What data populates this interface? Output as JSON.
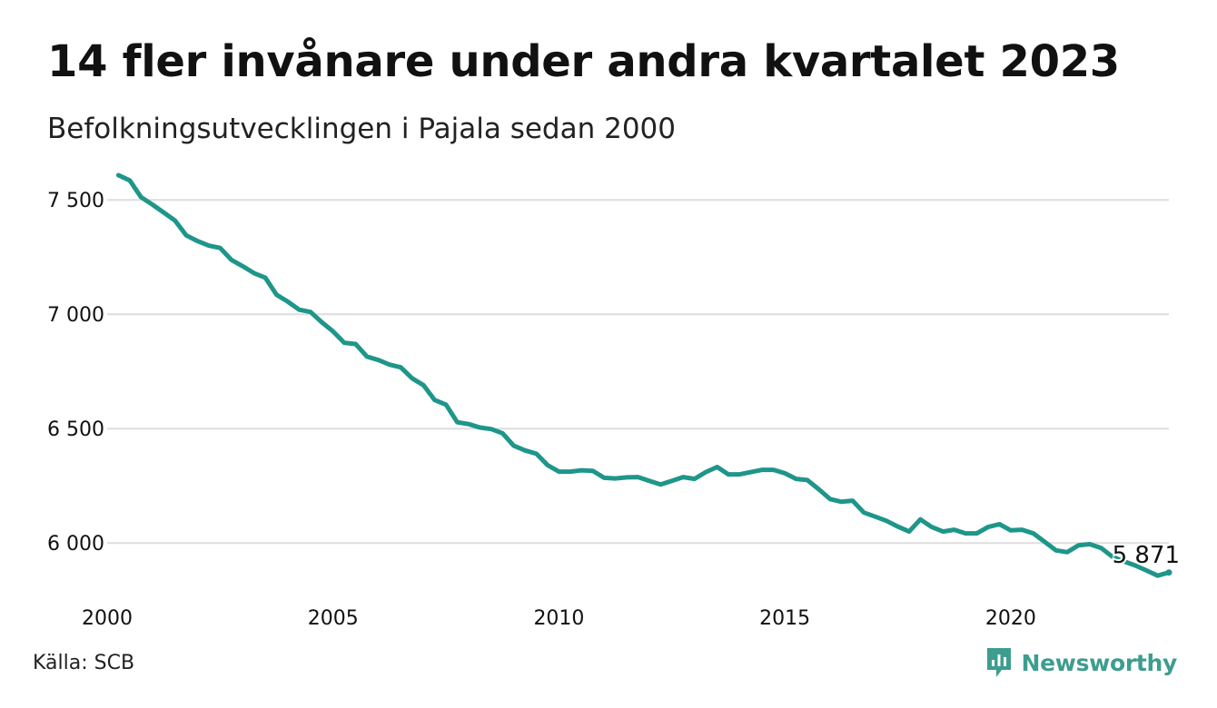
{
  "title": "14 fler invånare under andra kvartalet 2023",
  "subtitle": "Befolkningsutvecklingen i Pajala sedan 2000",
  "source": "Källa: SCB",
  "brand": {
    "name": "Newsworthy",
    "icon": "newsworthy-logo-icon"
  },
  "colors": {
    "line": "#1e968a",
    "grid": "#dddddd",
    "text": "#111111",
    "brand": "#3d9d8f"
  },
  "chart_data": {
    "type": "line",
    "title": "14 fler invånare under andra kvartalet 2023",
    "subtitle": "Befolkningsutvecklingen i Pajala sedan 2000",
    "xlabel": "",
    "ylabel": "",
    "xlim": [
      2000,
      2023.5
    ],
    "ylim": [
      5850,
      7620
    ],
    "x_ticks": [
      2000,
      2005,
      2010,
      2015,
      2020
    ],
    "x_tick_labels": [
      "2000",
      "2005",
      "2010",
      "2015",
      "2020"
    ],
    "y_ticks": [
      6000,
      6500,
      7000,
      7500
    ],
    "y_tick_labels": [
      "6 000",
      "6 500",
      "7 000",
      "7 500"
    ],
    "grid": "horizontal",
    "legend": "none",
    "end_label": "5 871",
    "x": [
      2000.25,
      2000.5,
      2000.75,
      2001.0,
      2001.25,
      2001.5,
      2001.75,
      2002.0,
      2002.25,
      2002.5,
      2002.75,
      2003.0,
      2003.25,
      2003.5,
      2003.75,
      2004.0,
      2004.25,
      2004.5,
      2004.75,
      2005.0,
      2005.25,
      2005.5,
      2005.75,
      2006.0,
      2006.25,
      2006.5,
      2006.75,
      2007.0,
      2007.25,
      2007.5,
      2007.75,
      2008.0,
      2008.25,
      2008.5,
      2008.75,
      2009.0,
      2009.25,
      2009.5,
      2009.75,
      2010.0,
      2010.25,
      2010.5,
      2010.75,
      2011.0,
      2011.25,
      2011.5,
      2011.75,
      2012.0,
      2012.25,
      2012.5,
      2012.75,
      2013.0,
      2013.25,
      2013.5,
      2013.75,
      2014.0,
      2014.25,
      2014.5,
      2014.75,
      2015.0,
      2015.25,
      2015.5,
      2015.75,
      2016.0,
      2016.25,
      2016.5,
      2016.75,
      2017.0,
      2017.25,
      2017.5,
      2017.75,
      2018.0,
      2018.25,
      2018.5,
      2018.75,
      2019.0,
      2019.25,
      2019.5,
      2019.75,
      2020.0,
      2020.25,
      2020.5,
      2020.75,
      2021.0,
      2021.25,
      2021.5,
      2021.75,
      2022.0,
      2022.25,
      2022.5,
      2022.75,
      2023.0,
      2023.25,
      2023.5
    ],
    "series": [
      {
        "values": [
          7608,
          7585,
          7512,
          7480,
          7445,
          7410,
          7345,
          7320,
          7300,
          7290,
          7238,
          7210,
          7180,
          7160,
          7085,
          7055,
          7020,
          7010,
          6965,
          6925,
          6875,
          6870,
          6815,
          6800,
          6780,
          6768,
          6720,
          6690,
          6625,
          6605,
          6528,
          6520,
          6505,
          6498,
          6480,
          6425,
          6405,
          6390,
          6340,
          6312,
          6312,
          6318,
          6315,
          6285,
          6282,
          6287,
          6288,
          6272,
          6256,
          6272,
          6288,
          6280,
          6310,
          6332,
          6300,
          6300,
          6310,
          6320,
          6320,
          6305,
          6280,
          6275,
          6235,
          6192,
          6180,
          6185,
          6133,
          6115,
          6097,
          6072,
          6050,
          6103,
          6070,
          6050,
          6058,
          6042,
          6042,
          6070,
          6082,
          6055,
          6058,
          6042,
          6005,
          5968,
          5960,
          5990,
          5995,
          5978,
          5940,
          5920,
          5902,
          5880,
          5857,
          5871
        ]
      }
    ]
  }
}
